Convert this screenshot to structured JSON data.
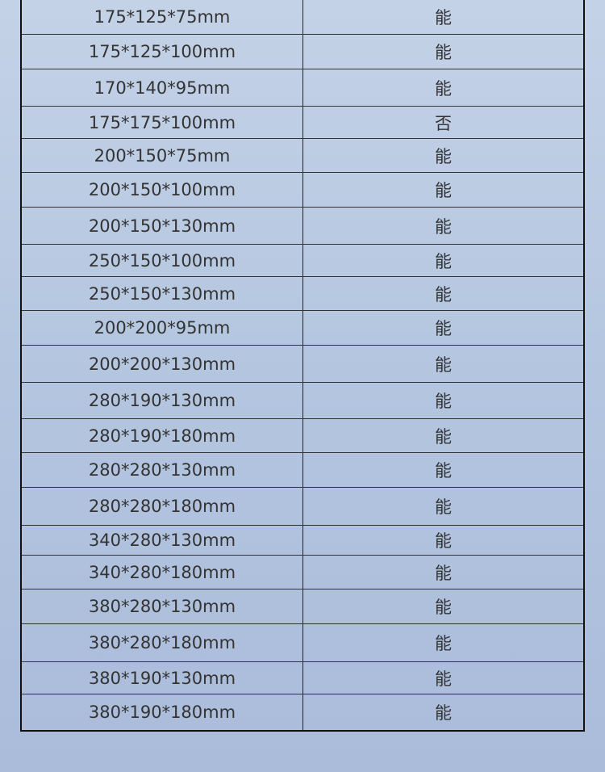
{
  "table": {
    "rows": [
      [
        "175*125*75mm",
        "能"
      ],
      [
        "175*125*100mm",
        "能"
      ],
      [
        "170*140*95mm",
        "能"
      ],
      [
        "175*175*100mm",
        "否"
      ],
      [
        "200*150*75mm",
        "能"
      ],
      [
        "200*150*100mm",
        "能"
      ],
      [
        "200*150*130mm",
        "能"
      ],
      [
        "250*150*100mm",
        "能"
      ],
      [
        "250*150*130mm",
        "能"
      ],
      [
        "200*200*95mm",
        "能"
      ],
      [
        "200*200*130mm",
        "能"
      ],
      [
        "280*190*130mm",
        "能"
      ],
      [
        "280*190*180mm",
        "能"
      ],
      [
        "280*280*130mm",
        "能"
      ],
      [
        "280*280*180mm",
        "能"
      ],
      [
        "340*280*130mm",
        "能"
      ],
      [
        "340*280*180mm",
        "能"
      ],
      [
        "380*280*130mm",
        "能"
      ],
      [
        "380*280*180mm",
        "能"
      ],
      [
        "380*190*130mm",
        "能"
      ],
      [
        "380*190*180mm",
        "能"
      ]
    ]
  }
}
